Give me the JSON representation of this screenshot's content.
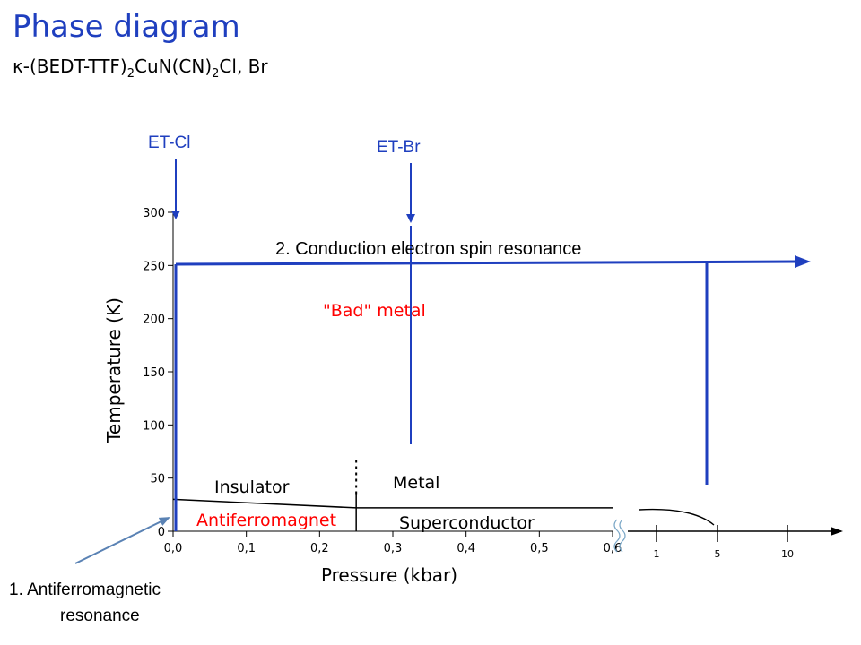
{
  "slide": {
    "title": "Phase diagram",
    "subtitle_prefix": "κ-(BEDT-TTF)",
    "subtitle_sub1": "2",
    "subtitle_mid": "CuN(CN)",
    "subtitle_sub2": "2",
    "subtitle_suffix": "Cl, Br"
  },
  "colors": {
    "blue": "#1f3fbf",
    "red": "#ff0000",
    "axis": "#000000",
    "arrow1": "#5a82b4"
  },
  "chart_data": {
    "type": "line",
    "ylabel": "Temperature (K)",
    "xlabel": "Pressure (kbar)",
    "ylim": [
      0,
      300
    ],
    "xlim": [
      0.0,
      0.6
    ],
    "yticks": [
      0,
      50,
      100,
      150,
      200,
      250,
      300
    ],
    "xticks": [
      "0,0",
      "0,1",
      "0,2",
      "0,3",
      "0,4",
      "0,5",
      "0,6"
    ],
    "xtick_values": [
      0.0,
      0.1,
      0.2,
      0.3,
      0.4,
      0.5,
      0.6
    ],
    "x_extension_ticks": [
      "1",
      "5",
      "10"
    ],
    "boundaries": [
      {
        "name": "",
        "x": [
          0.0,
          0.25
        ],
        "y": [
          30,
          22
        ]
      },
      {
        "name": "",
        "x": [
          0.25,
          0.6
        ],
        "y": [
          22,
          22
        ]
      },
      {
        "name": "",
        "x": [
          0.25,
          0.25
        ],
        "y": [
          0,
          35
        ]
      },
      {
        "name": "",
        "x": [
          0.25,
          0.25
        ],
        "y": [
          35,
          68
        ]
      }
    ],
    "regions": [
      {
        "label": "Insulator",
        "color": "#000000"
      },
      {
        "label": "Antiferromagnet",
        "color": "#ff0000"
      },
      {
        "label": "Metal",
        "color": "#000000"
      },
      {
        "label": "Superconductor",
        "color": "#000000"
      },
      {
        "label": "\"Bad\" metal",
        "color": "#ff0000"
      }
    ],
    "samples": [
      {
        "label": "ET-Cl",
        "pressure": 0.0
      },
      {
        "label": "ET-Br",
        "pressure": 0.33
      }
    ],
    "annotations": [
      {
        "label": "2. Conduction electron spin resonance",
        "temperature": 250
      },
      {
        "label_line1": "1. Antiferromagnetic",
        "label_line2": "resonance"
      }
    ]
  }
}
